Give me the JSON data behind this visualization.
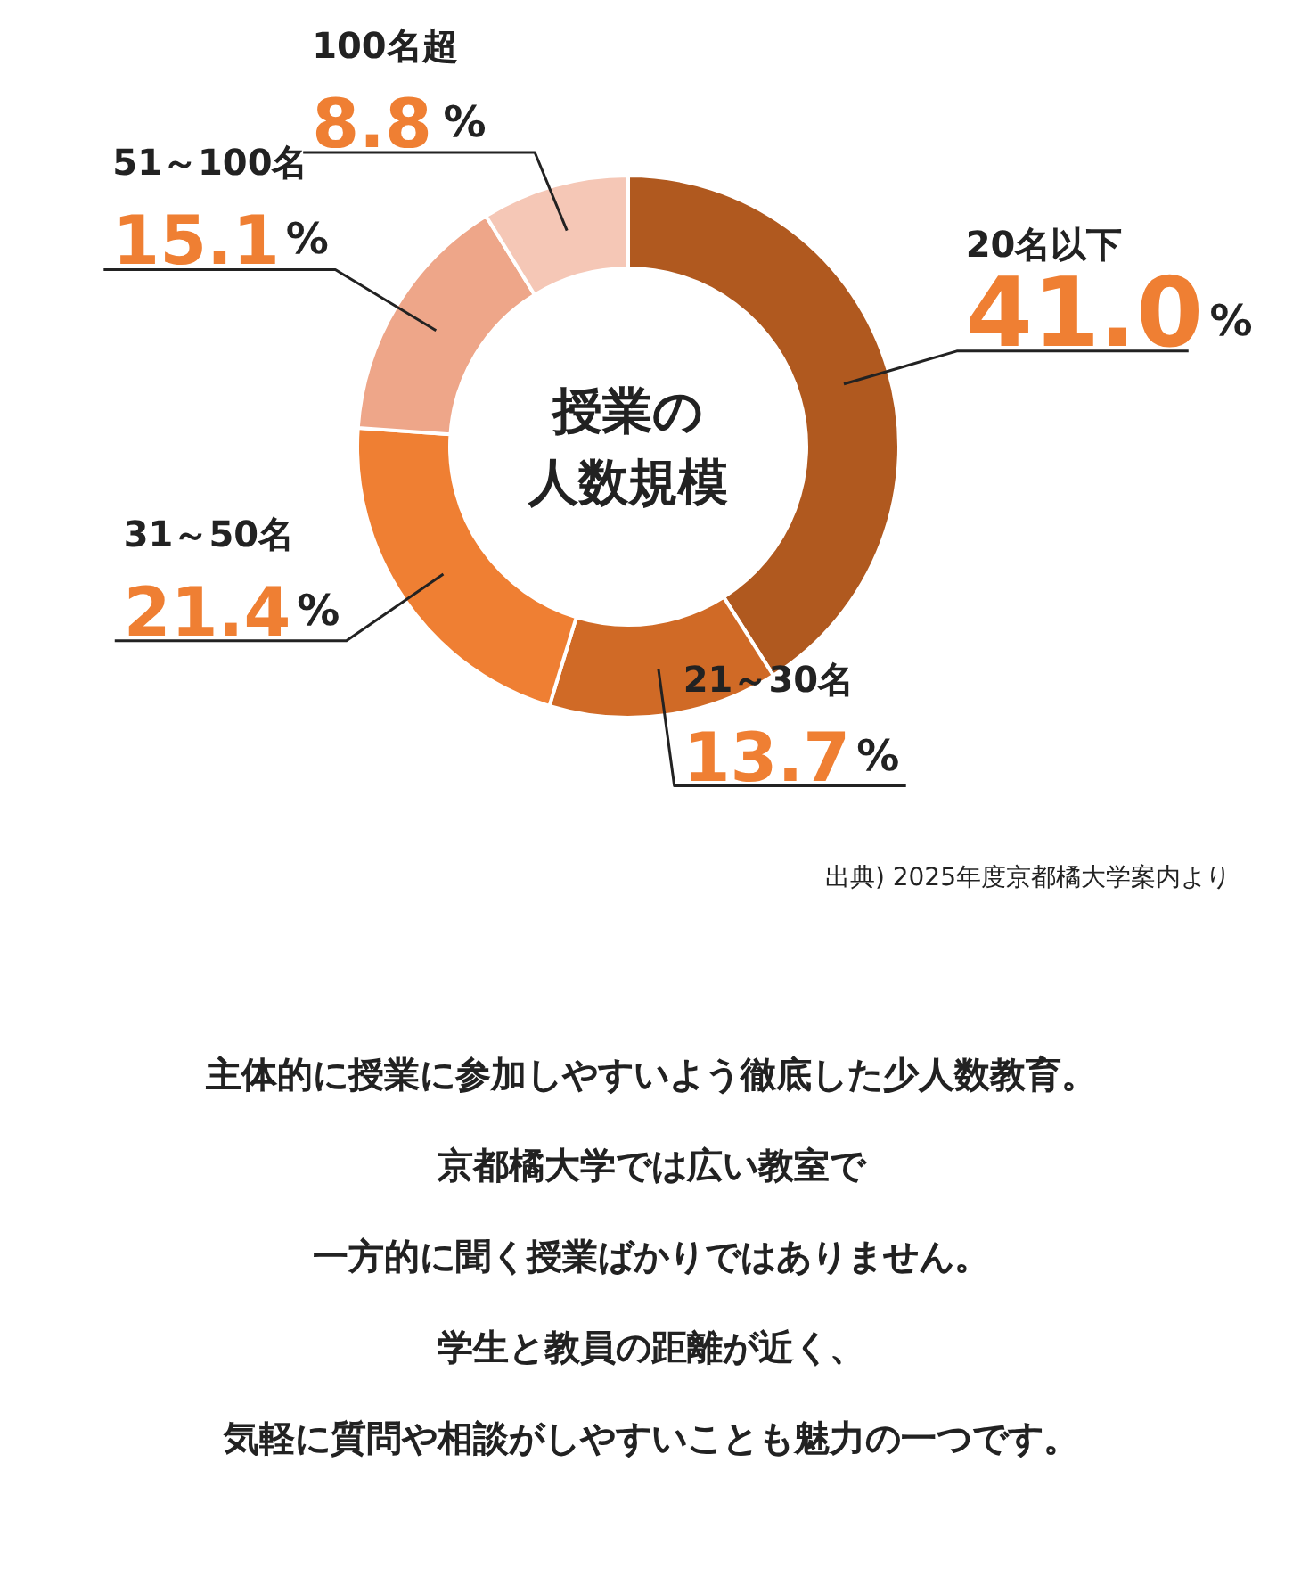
{
  "chart_data": {
    "type": "donut",
    "title": "授業の人数規模",
    "categories": [
      "20名以下",
      "21～30名",
      "31～50名",
      "51～100名",
      "100名超"
    ],
    "values": [
      41.0,
      13.7,
      21.4,
      15.1,
      8.8
    ],
    "colors": [
      "#b0591f",
      "#d06a26",
      "#ef7f33",
      "#eea689",
      "#f5c7b6"
    ],
    "value_labels": [
      "41.0%",
      "13.7%",
      "21.4%",
      "15.1%",
      "8.8%"
    ],
    "annotations": [
      "出典) 2025年度京都橘大学案内より",
      "主体的に授業に参加しやすいよう徹底した少人数教育。",
      "京都橘大学では広い教室で",
      "一方的に聞く授業ばかりではありません。",
      "学生と教員の距離が近く、",
      "気軽に質問や相談がしやすいことも魅力の一つです。"
    ]
  }
}
